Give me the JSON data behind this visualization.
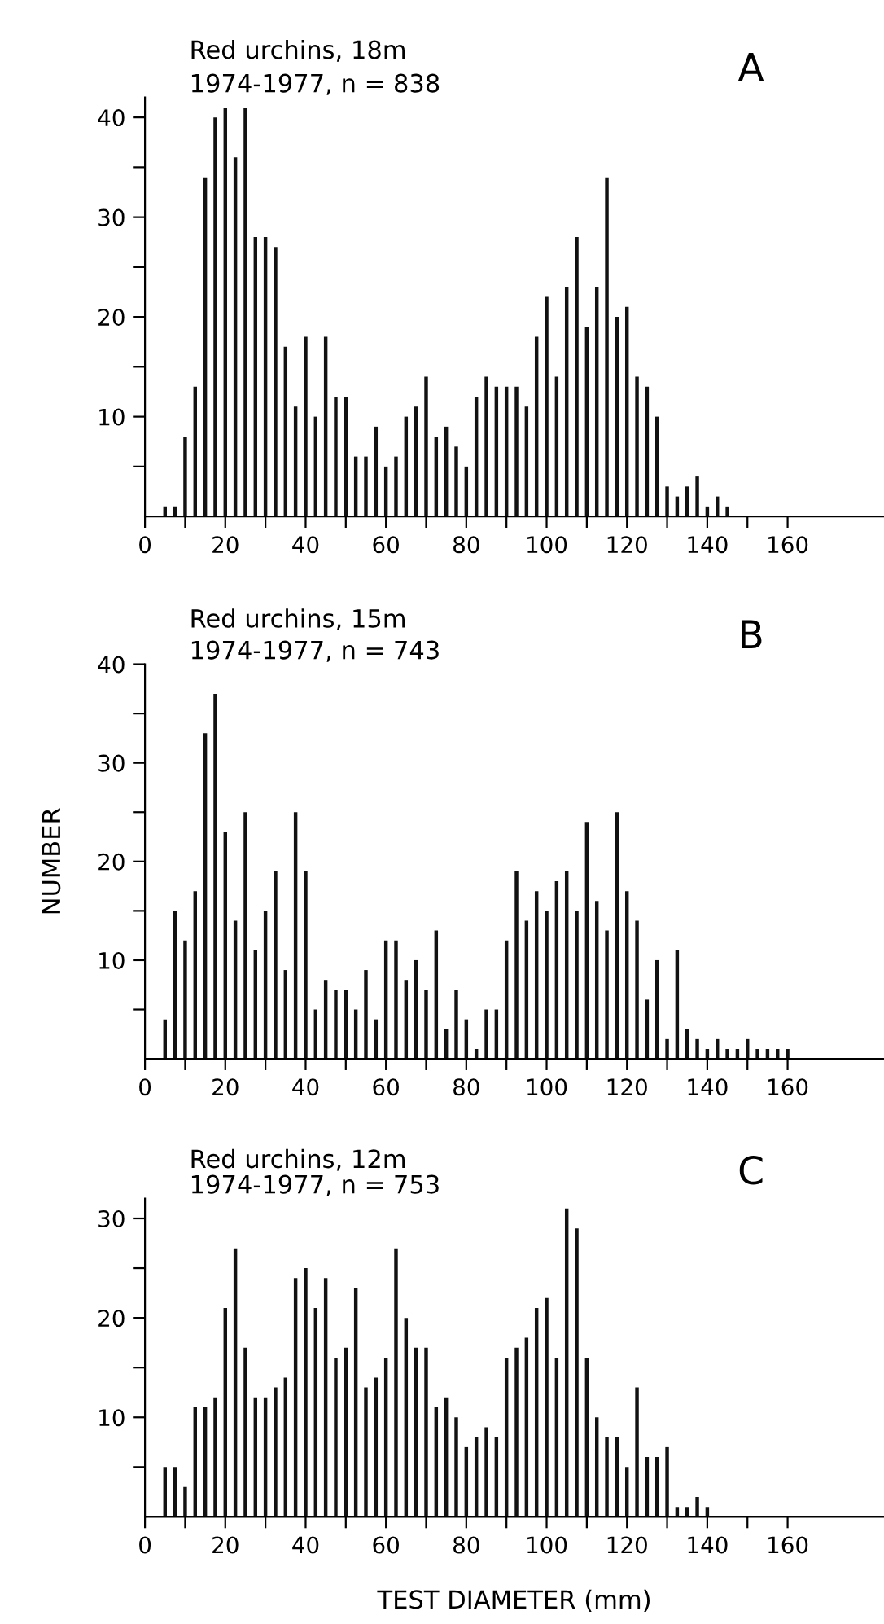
{
  "chart_data": [
    {
      "type": "bar",
      "title": "Red urchins, 18m",
      "subtitle": "1974-1977, n = 838",
      "annotations": [
        "A"
      ],
      "x": [
        5,
        7.5,
        10,
        12.5,
        15,
        17.5,
        20,
        22.5,
        25,
        27.5,
        30,
        32.5,
        35,
        37.5,
        40,
        42.5,
        45,
        47.5,
        50,
        52.5,
        55,
        57.5,
        60,
        62.5,
        65,
        67.5,
        70,
        72.5,
        75,
        77.5,
        80,
        82.5,
        85,
        87.5,
        90,
        92.5,
        95,
        97.5,
        100,
        102.5,
        105,
        107.5,
        110,
        112.5,
        115,
        117.5,
        120,
        122.5,
        125,
        127.5,
        130,
        132.5,
        135,
        137.5,
        140,
        142.5,
        145
      ],
      "values": [
        1,
        1,
        8,
        13,
        34,
        40,
        41,
        36,
        41,
        28,
        28,
        27,
        17,
        11,
        18,
        10,
        18,
        12,
        12,
        6,
        6,
        9,
        5,
        6,
        10,
        11,
        14,
        8,
        9,
        7,
        5,
        12,
        14,
        13,
        13,
        13,
        11,
        18,
        22,
        14,
        23,
        28,
        19,
        23,
        34,
        20,
        21,
        14,
        13,
        10,
        3,
        2,
        3,
        4,
        1,
        2,
        1
      ],
      "color": "#111111",
      "xlim": [
        0,
        184
      ],
      "ylim": [
        0,
        42
      ],
      "xticks": [
        0,
        {
          "value": 10,
          "label": null
        },
        20,
        {
          "value": 30,
          "label": null
        },
        40,
        {
          "value": 50,
          "label": null
        },
        60,
        {
          "value": 70,
          "label": null
        },
        80,
        {
          "value": 90,
          "label": null
        },
        100,
        {
          "value": 110,
          "label": null
        },
        120,
        {
          "value": 130,
          "label": null
        },
        140,
        {
          "value": 150,
          "label": null
        },
        160
      ],
      "yticks": [
        {
          "value": 5,
          "label": null
        },
        10,
        {
          "value": 15,
          "label": null
        },
        20,
        {
          "value": 25,
          "label": null
        },
        30,
        {
          "value": 35,
          "label": null
        },
        40
      ],
      "grid": false,
      "legend": false
    },
    {
      "type": "bar",
      "title": "Red urchins, 15m",
      "subtitle": "1974-1977, n = 743",
      "ylabel": "NUMBER",
      "annotations": [
        "B"
      ],
      "x": [
        5,
        7.5,
        10,
        12.5,
        15,
        17.5,
        20,
        22.5,
        25,
        27.5,
        30,
        32.5,
        35,
        37.5,
        40,
        42.5,
        45,
        47.5,
        50,
        52.5,
        55,
        57.5,
        60,
        62.5,
        65,
        67.5,
        70,
        72.5,
        75,
        77.5,
        80,
        82.5,
        85,
        87.5,
        90,
        92.5,
        95,
        97.5,
        100,
        102.5,
        105,
        107.5,
        110,
        112.5,
        115,
        117.5,
        120,
        122.5,
        125,
        127.5,
        130,
        132.5,
        135,
        137.5,
        140,
        142.5,
        145,
        147.5,
        150,
        152.5,
        155,
        157.5,
        160
      ],
      "values": [
        4,
        15,
        12,
        17,
        33,
        37,
        23,
        14,
        25,
        11,
        15,
        19,
        9,
        25,
        19,
        5,
        8,
        7,
        7,
        5,
        9,
        4,
        12,
        12,
        8,
        10,
        7,
        13,
        3,
        7,
        4,
        1,
        5,
        5,
        12,
        19,
        14,
        17,
        15,
        18,
        19,
        15,
        24,
        16,
        13,
        25,
        17,
        14,
        6,
        10,
        2,
        11,
        3,
        2,
        1,
        2,
        1,
        1,
        2,
        1,
        1,
        1,
        1
      ],
      "color": "#111111",
      "xlim": [
        0,
        184
      ],
      "ylim": [
        0,
        40
      ],
      "xticks": [
        0,
        {
          "value": 10,
          "label": null
        },
        20,
        {
          "value": 30,
          "label": null
        },
        40,
        {
          "value": 50,
          "label": null
        },
        60,
        {
          "value": 70,
          "label": null
        },
        80,
        {
          "value": 90,
          "label": null
        },
        100,
        {
          "value": 110,
          "label": null
        },
        120,
        {
          "value": 130,
          "label": null
        },
        140,
        {
          "value": 150,
          "label": null
        },
        160
      ],
      "yticks": [
        {
          "value": 5,
          "label": null
        },
        10,
        {
          "value": 15,
          "label": null
        },
        20,
        {
          "value": 25,
          "label": null
        },
        30,
        {
          "value": 35,
          "label": null
        },
        40
      ],
      "grid": false,
      "legend": false
    },
    {
      "type": "bar",
      "title": "Red urchins, 12m",
      "subtitle": "1974-1977, n = 753",
      "xlabel": "TEST DIAMETER (mm)",
      "annotations": [
        "C"
      ],
      "x": [
        5,
        7.5,
        10,
        12.5,
        15,
        17.5,
        20,
        22.5,
        25,
        27.5,
        30,
        32.5,
        35,
        37.5,
        40,
        42.5,
        45,
        47.5,
        50,
        52.5,
        55,
        57.5,
        60,
        62.5,
        65,
        67.5,
        70,
        72.5,
        75,
        77.5,
        80,
        82.5,
        85,
        87.5,
        90,
        92.5,
        95,
        97.5,
        100,
        102.5,
        105,
        107.5,
        110,
        112.5,
        115,
        117.5,
        120,
        122.5,
        125,
        127.5,
        130,
        132.5,
        135,
        137.5,
        140
      ],
      "values": [
        5,
        5,
        3,
        11,
        11,
        12,
        21,
        27,
        17,
        12,
        12,
        13,
        14,
        24,
        25,
        21,
        24,
        16,
        17,
        23,
        13,
        14,
        16,
        27,
        20,
        17,
        17,
        11,
        12,
        10,
        7,
        8,
        9,
        8,
        16,
        17,
        18,
        21,
        22,
        16,
        31,
        29,
        16,
        10,
        8,
        8,
        5,
        13,
        6,
        6,
        7,
        1,
        1,
        2,
        1
      ],
      "color": "#111111",
      "xlim": [
        0,
        184
      ],
      "ylim": [
        0,
        32
      ],
      "xticks": [
        0,
        {
          "value": 10,
          "label": null
        },
        20,
        {
          "value": 30,
          "label": null
        },
        40,
        {
          "value": 50,
          "label": null
        },
        60,
        {
          "value": 70,
          "label": null
        },
        80,
        {
          "value": 90,
          "label": null
        },
        100,
        {
          "value": 110,
          "label": null
        },
        120,
        {
          "value": 130,
          "label": null
        },
        140,
        {
          "value": 150,
          "label": null
        },
        160
      ],
      "yticks": [
        {
          "value": 5,
          "label": null
        },
        10,
        {
          "value": 15,
          "label": null
        },
        20,
        {
          "value": 25,
          "label": null
        },
        30
      ],
      "grid": false,
      "legend": false
    }
  ]
}
